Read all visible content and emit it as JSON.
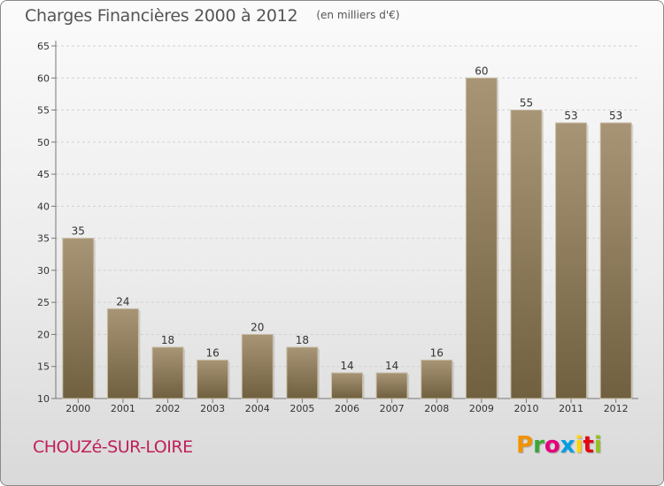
{
  "header": {
    "title": "Charges Financières 2000 à 2012",
    "subtitle": "(en milliers d'€)"
  },
  "footer": {
    "place": "CHOUZé-SUR-LOIRE",
    "brand": "Proxiti"
  },
  "brand_colors": [
    "#f39200",
    "#3aa635",
    "#e4007c",
    "#009fe3",
    "#ffd500",
    "#e30613",
    "#95c11f"
  ],
  "chart_data": {
    "type": "bar",
    "title": "Charges Financières 2000 à 2012",
    "subtitle": "(en milliers d'€)",
    "xlabel": "",
    "ylabel": "",
    "categories": [
      "2000",
      "2001",
      "2002",
      "2003",
      "2004",
      "2005",
      "2006",
      "2007",
      "2008",
      "2009",
      "2010",
      "2011",
      "2012"
    ],
    "values": [
      35,
      24,
      18,
      16,
      20,
      18,
      14,
      14,
      16,
      60,
      55,
      53,
      53
    ],
    "value_labels": [
      "35",
      "24",
      "18",
      "16",
      "20",
      "18",
      "14",
      "14",
      "16",
      "60",
      "55",
      "53",
      "53"
    ],
    "ylim": [
      10,
      65
    ],
    "yticks": [
      "10",
      "15",
      "20",
      "25",
      "30",
      "35",
      "40",
      "45",
      "50",
      "55",
      "60",
      "65"
    ],
    "grid": true,
    "legend": "none",
    "bar_color_top": "#a89576",
    "bar_color_bottom": "#70603f"
  }
}
